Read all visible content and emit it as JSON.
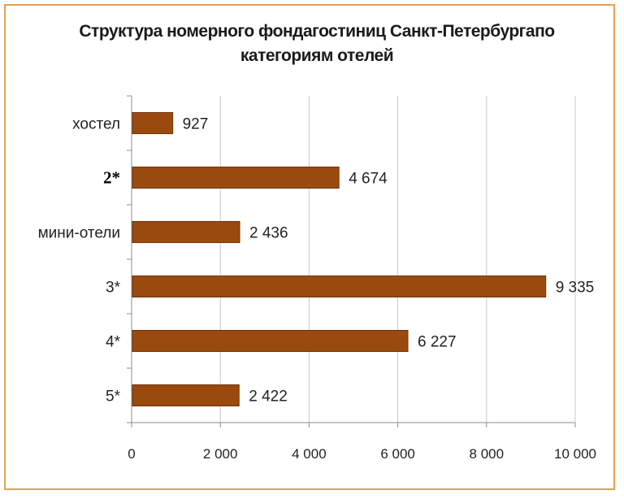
{
  "chart_data": {
    "type": "bar",
    "orientation": "horizontal",
    "title_line1": "Структура номерного фондагостиниц Санкт-Петербургапо",
    "title_line2": "категориям отелей",
    "categories": [
      "хостел",
      "2*",
      "мини-отели",
      "3*",
      "4*",
      "5*"
    ],
    "values": [
      927,
      4674,
      2436,
      9335,
      6227,
      2422
    ],
    "value_labels": [
      "927",
      "4 674",
      "2 436",
      "9 335",
      "6 227",
      "2 422"
    ],
    "bold_categories": [
      "2*"
    ],
    "xlim": [
      0,
      10000
    ],
    "ticks": [
      0,
      2000,
      4000,
      6000,
      8000,
      10000
    ],
    "tick_labels": [
      "0",
      "2 000",
      "4 000",
      "6 000",
      "8 000",
      "10 000"
    ],
    "grid": true,
    "bar_color": "#9b4a0f",
    "bar_edge_color": "#6e3208",
    "frame_color": "#e3a04f"
  }
}
